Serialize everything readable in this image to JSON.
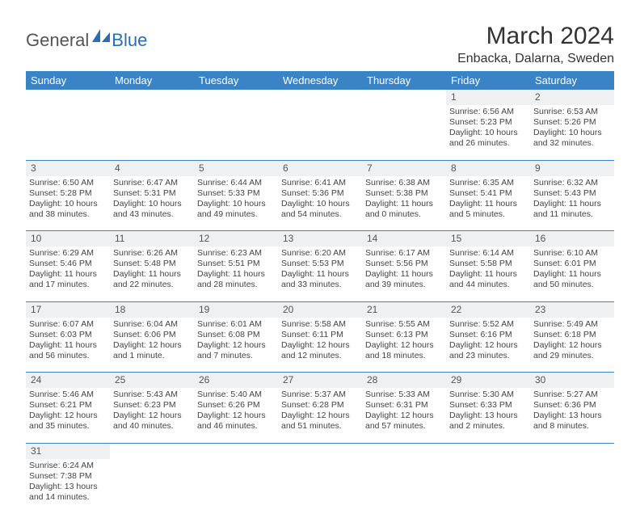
{
  "logo": {
    "part1": "General",
    "part2": "Blue"
  },
  "title": "March 2024",
  "location": "Enbacka, Dalarna, Sweden",
  "colors": {
    "header_bg": "#3b83c7",
    "header_fg": "#ffffff",
    "daynum_bg": "#eef0f2",
    "row_border": "#3b83c7",
    "title_color": "#333333",
    "logo_blue": "#2a6db5",
    "text": "#444444",
    "background": "#ffffff"
  },
  "weekdays": [
    "Sunday",
    "Monday",
    "Tuesday",
    "Wednesday",
    "Thursday",
    "Friday",
    "Saturday"
  ],
  "weeks": [
    [
      null,
      null,
      null,
      null,
      null,
      {
        "n": "1",
        "sr": "Sunrise: 6:56 AM",
        "ss": "Sunset: 5:23 PM",
        "d1": "Daylight: 10 hours",
        "d2": "and 26 minutes."
      },
      {
        "n": "2",
        "sr": "Sunrise: 6:53 AM",
        "ss": "Sunset: 5:26 PM",
        "d1": "Daylight: 10 hours",
        "d2": "and 32 minutes."
      }
    ],
    [
      {
        "n": "3",
        "sr": "Sunrise: 6:50 AM",
        "ss": "Sunset: 5:28 PM",
        "d1": "Daylight: 10 hours",
        "d2": "and 38 minutes."
      },
      {
        "n": "4",
        "sr": "Sunrise: 6:47 AM",
        "ss": "Sunset: 5:31 PM",
        "d1": "Daylight: 10 hours",
        "d2": "and 43 minutes."
      },
      {
        "n": "5",
        "sr": "Sunrise: 6:44 AM",
        "ss": "Sunset: 5:33 PM",
        "d1": "Daylight: 10 hours",
        "d2": "and 49 minutes."
      },
      {
        "n": "6",
        "sr": "Sunrise: 6:41 AM",
        "ss": "Sunset: 5:36 PM",
        "d1": "Daylight: 10 hours",
        "d2": "and 54 minutes."
      },
      {
        "n": "7",
        "sr": "Sunrise: 6:38 AM",
        "ss": "Sunset: 5:38 PM",
        "d1": "Daylight: 11 hours",
        "d2": "and 0 minutes."
      },
      {
        "n": "8",
        "sr": "Sunrise: 6:35 AM",
        "ss": "Sunset: 5:41 PM",
        "d1": "Daylight: 11 hours",
        "d2": "and 5 minutes."
      },
      {
        "n": "9",
        "sr": "Sunrise: 6:32 AM",
        "ss": "Sunset: 5:43 PM",
        "d1": "Daylight: 11 hours",
        "d2": "and 11 minutes."
      }
    ],
    [
      {
        "n": "10",
        "sr": "Sunrise: 6:29 AM",
        "ss": "Sunset: 5:46 PM",
        "d1": "Daylight: 11 hours",
        "d2": "and 17 minutes."
      },
      {
        "n": "11",
        "sr": "Sunrise: 6:26 AM",
        "ss": "Sunset: 5:48 PM",
        "d1": "Daylight: 11 hours",
        "d2": "and 22 minutes."
      },
      {
        "n": "12",
        "sr": "Sunrise: 6:23 AM",
        "ss": "Sunset: 5:51 PM",
        "d1": "Daylight: 11 hours",
        "d2": "and 28 minutes."
      },
      {
        "n": "13",
        "sr": "Sunrise: 6:20 AM",
        "ss": "Sunset: 5:53 PM",
        "d1": "Daylight: 11 hours",
        "d2": "and 33 minutes."
      },
      {
        "n": "14",
        "sr": "Sunrise: 6:17 AM",
        "ss": "Sunset: 5:56 PM",
        "d1": "Daylight: 11 hours",
        "d2": "and 39 minutes."
      },
      {
        "n": "15",
        "sr": "Sunrise: 6:14 AM",
        "ss": "Sunset: 5:58 PM",
        "d1": "Daylight: 11 hours",
        "d2": "and 44 minutes."
      },
      {
        "n": "16",
        "sr": "Sunrise: 6:10 AM",
        "ss": "Sunset: 6:01 PM",
        "d1": "Daylight: 11 hours",
        "d2": "and 50 minutes."
      }
    ],
    [
      {
        "n": "17",
        "sr": "Sunrise: 6:07 AM",
        "ss": "Sunset: 6:03 PM",
        "d1": "Daylight: 11 hours",
        "d2": "and 56 minutes."
      },
      {
        "n": "18",
        "sr": "Sunrise: 6:04 AM",
        "ss": "Sunset: 6:06 PM",
        "d1": "Daylight: 12 hours",
        "d2": "and 1 minute."
      },
      {
        "n": "19",
        "sr": "Sunrise: 6:01 AM",
        "ss": "Sunset: 6:08 PM",
        "d1": "Daylight: 12 hours",
        "d2": "and 7 minutes."
      },
      {
        "n": "20",
        "sr": "Sunrise: 5:58 AM",
        "ss": "Sunset: 6:11 PM",
        "d1": "Daylight: 12 hours",
        "d2": "and 12 minutes."
      },
      {
        "n": "21",
        "sr": "Sunrise: 5:55 AM",
        "ss": "Sunset: 6:13 PM",
        "d1": "Daylight: 12 hours",
        "d2": "and 18 minutes."
      },
      {
        "n": "22",
        "sr": "Sunrise: 5:52 AM",
        "ss": "Sunset: 6:16 PM",
        "d1": "Daylight: 12 hours",
        "d2": "and 23 minutes."
      },
      {
        "n": "23",
        "sr": "Sunrise: 5:49 AM",
        "ss": "Sunset: 6:18 PM",
        "d1": "Daylight: 12 hours",
        "d2": "and 29 minutes."
      }
    ],
    [
      {
        "n": "24",
        "sr": "Sunrise: 5:46 AM",
        "ss": "Sunset: 6:21 PM",
        "d1": "Daylight: 12 hours",
        "d2": "and 35 minutes."
      },
      {
        "n": "25",
        "sr": "Sunrise: 5:43 AM",
        "ss": "Sunset: 6:23 PM",
        "d1": "Daylight: 12 hours",
        "d2": "and 40 minutes."
      },
      {
        "n": "26",
        "sr": "Sunrise: 5:40 AM",
        "ss": "Sunset: 6:26 PM",
        "d1": "Daylight: 12 hours",
        "d2": "and 46 minutes."
      },
      {
        "n": "27",
        "sr": "Sunrise: 5:37 AM",
        "ss": "Sunset: 6:28 PM",
        "d1": "Daylight: 12 hours",
        "d2": "and 51 minutes."
      },
      {
        "n": "28",
        "sr": "Sunrise: 5:33 AM",
        "ss": "Sunset: 6:31 PM",
        "d1": "Daylight: 12 hours",
        "d2": "and 57 minutes."
      },
      {
        "n": "29",
        "sr": "Sunrise: 5:30 AM",
        "ss": "Sunset: 6:33 PM",
        "d1": "Daylight: 13 hours",
        "d2": "and 2 minutes."
      },
      {
        "n": "30",
        "sr": "Sunrise: 5:27 AM",
        "ss": "Sunset: 6:36 PM",
        "d1": "Daylight: 13 hours",
        "d2": "and 8 minutes."
      }
    ],
    [
      {
        "n": "31",
        "sr": "Sunrise: 6:24 AM",
        "ss": "Sunset: 7:38 PM",
        "d1": "Daylight: 13 hours",
        "d2": "and 14 minutes."
      },
      null,
      null,
      null,
      null,
      null,
      null
    ]
  ]
}
